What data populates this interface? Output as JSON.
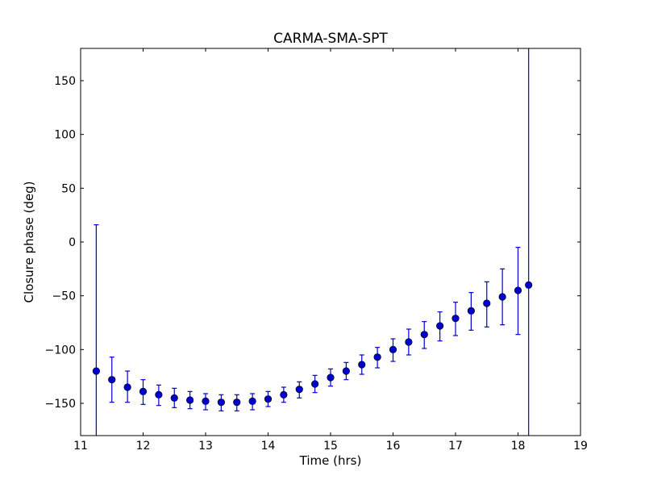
{
  "chart_data": {
    "type": "scatter",
    "title": "CARMA-SMA-SPT",
    "xlabel": "Time (hrs)",
    "ylabel": "Closure phase (deg)",
    "xlim": [
      11,
      19
    ],
    "ylim": [
      -180,
      180
    ],
    "xticks": [
      11,
      12,
      13,
      14,
      15,
      16,
      17,
      18,
      19
    ],
    "xtick_labels": [
      "11",
      "12",
      "13",
      "14",
      "15",
      "16",
      "17",
      "18",
      "19"
    ],
    "yticks": [
      -150,
      -100,
      -50,
      0,
      50,
      100,
      150
    ],
    "ytick_labels": [
      "−150",
      "−100",
      "−50",
      "0",
      "50",
      "100",
      "150"
    ],
    "grid": false,
    "marker_color": "#0000cc",
    "errorbar_color": "#0000cc",
    "series": [
      {
        "points": [
          {
            "x": 11.25,
            "y": -120,
            "ylo": -180,
            "yhi": 16
          },
          {
            "x": 11.5,
            "y": -128,
            "ylo": -149,
            "yhi": -107
          },
          {
            "x": 11.75,
            "y": -135,
            "ylo": -149,
            "yhi": -120
          },
          {
            "x": 12.0,
            "y": -139,
            "ylo": -151,
            "yhi": -128
          },
          {
            "x": 12.25,
            "y": -142,
            "ylo": -152,
            "yhi": -133
          },
          {
            "x": 12.5,
            "y": -145,
            "ylo": -154,
            "yhi": -136
          },
          {
            "x": 12.75,
            "y": -147,
            "ylo": -155,
            "yhi": -139
          },
          {
            "x": 13.0,
            "y": -148,
            "ylo": -156,
            "yhi": -141
          },
          {
            "x": 13.25,
            "y": -149,
            "ylo": -157,
            "yhi": -142
          },
          {
            "x": 13.5,
            "y": -149,
            "ylo": -157,
            "yhi": -142
          },
          {
            "x": 13.75,
            "y": -148,
            "ylo": -156,
            "yhi": -141
          },
          {
            "x": 14.0,
            "y": -146,
            "ylo": -153,
            "yhi": -139
          },
          {
            "x": 14.25,
            "y": -142,
            "ylo": -149,
            "yhi": -135
          },
          {
            "x": 14.5,
            "y": -137,
            "ylo": -145,
            "yhi": -130
          },
          {
            "x": 14.75,
            "y": -132,
            "ylo": -140,
            "yhi": -124
          },
          {
            "x": 15.0,
            "y": -126,
            "ylo": -134,
            "yhi": -118
          },
          {
            "x": 15.25,
            "y": -120,
            "ylo": -128,
            "yhi": -112
          },
          {
            "x": 15.5,
            "y": -114,
            "ylo": -123,
            "yhi": -105
          },
          {
            "x": 15.75,
            "y": -107,
            "ylo": -117,
            "yhi": -98
          },
          {
            "x": 16.0,
            "y": -100,
            "ylo": -111,
            "yhi": -90
          },
          {
            "x": 16.25,
            "y": -93,
            "ylo": -105,
            "yhi": -81
          },
          {
            "x": 16.5,
            "y": -86,
            "ylo": -99,
            "yhi": -74
          },
          {
            "x": 16.75,
            "y": -78,
            "ylo": -92,
            "yhi": -65
          },
          {
            "x": 17.0,
            "y": -71,
            "ylo": -87,
            "yhi": -56
          },
          {
            "x": 17.25,
            "y": -64,
            "ylo": -82,
            "yhi": -47
          },
          {
            "x": 17.5,
            "y": -57,
            "ylo": -79,
            "yhi": -37
          },
          {
            "x": 17.75,
            "y": -51,
            "ylo": -77,
            "yhi": -25
          },
          {
            "x": 18.0,
            "y": -45,
            "ylo": -86,
            "yhi": -5
          },
          {
            "x": 18.17,
            "y": -40,
            "ylo": -180,
            "yhi": 180
          }
        ]
      }
    ]
  }
}
